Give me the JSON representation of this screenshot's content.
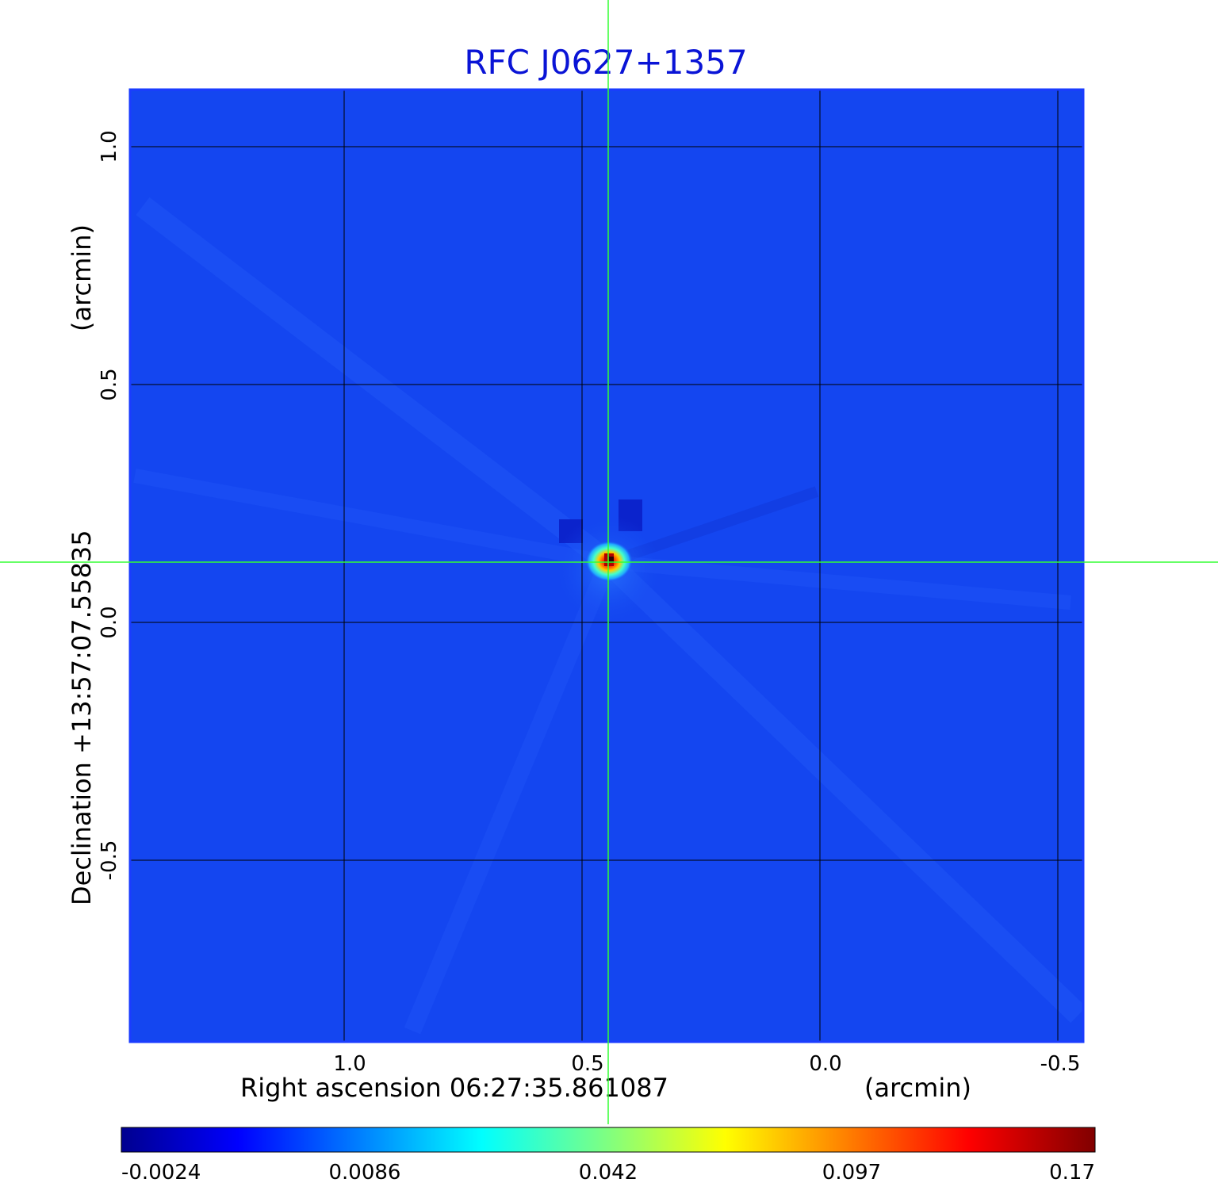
{
  "title": "RFC J0627+1357",
  "title_color": "#0a14d6",
  "background_color": "#1446f0",
  "grid_color": "#000000",
  "crosshair_color": "#33ff33",
  "colormap": "jet",
  "x_axis": {
    "label": "Right ascension  06:27:35.861087",
    "unit": "(arcmin)",
    "ticks": [
      "1.0",
      "0.5",
      "0.0",
      "-0.5"
    ]
  },
  "y_axis": {
    "label": "Declination  +13:57:07.55835",
    "unit": "(arcmin)",
    "ticks": [
      "1.0",
      "0.5",
      "0.0",
      "-0.5"
    ]
  },
  "colorbar": {
    "ticks": [
      "-0.0024",
      "0.0086",
      "0.042",
      "0.097",
      "0.17"
    ]
  },
  "source": {
    "ra_offset_arcmin": 0.45,
    "dec_offset_arcmin": 0.13,
    "peak": 0.17
  }
}
